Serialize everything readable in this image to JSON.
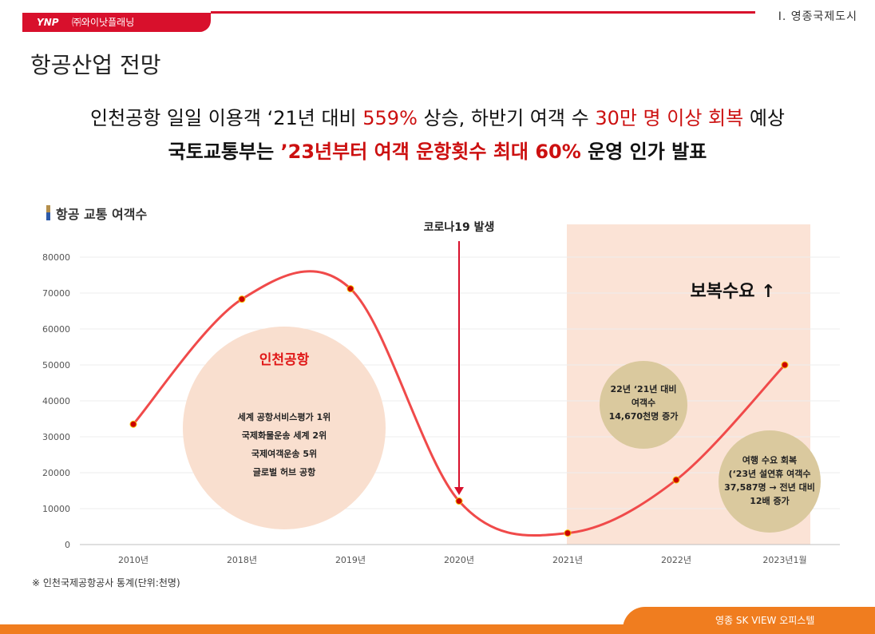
{
  "header": {
    "logo_mark": "YNP",
    "logo_name": "㈜와이낫플래닝",
    "section_label": "Ⅰ. 영종국제도시"
  },
  "page_title": "항공산업 전망",
  "headline_1": {
    "p1": "인천공항 일일 이용객 ‘21년 대비 ",
    "r1": "559%",
    "p2": " 상승, 하반기 여객 수 ",
    "r2": "30만 명 이상 회복",
    "p3": " 예상"
  },
  "headline_2": {
    "p1": "국토교통부는 ",
    "r1": "’23년부터 여객 운항횟수 최대 60%",
    "p2": " 운영 인가 발표"
  },
  "chart_heading": "항공 교통 여객수",
  "colors": {
    "brand_red": "#d8102c",
    "line": "#f04a4a",
    "marker": "#cc0000",
    "highlight_area": "#fbe3d6",
    "bubble_peach": "#f9dfcf",
    "bubble_tan": "#dac99e",
    "footer_orange": "#f07d1f"
  },
  "chart_data": {
    "type": "line",
    "categories": [
      "2010년",
      "2018년",
      "2019년",
      "2020년",
      "2021년",
      "2022년",
      "2023년1월"
    ],
    "values": [
      33500,
      68300,
      71200,
      12100,
      3200,
      18000,
      50000
    ],
    "ylim": [
      0,
      80000
    ],
    "yticks": [
      0,
      10000,
      20000,
      30000,
      40000,
      50000,
      60000,
      70000,
      80000
    ],
    "grid": true,
    "legend": "none",
    "annotations": {
      "covid": "코로나19 발생",
      "recovery": "보복수요 ↑",
      "incheon_title": "인천공항",
      "incheon_lines": [
        "세계 공항서비스평가 1위",
        "국제화물운송 세계 2위",
        "국제여객운송 5위",
        "글로벌 허브 공항"
      ],
      "bubble_2022_lines": [
        "22년 ‘21년 대비",
        "여객수",
        "14,670천명 증가"
      ],
      "bubble_2023_lines": [
        "여행 수요 회복",
        "(‘23년 설연휴 여객수",
        "37,587명 → 전년 대비",
        "12배 증가"
      ]
    }
  },
  "source_note": "※ 인천국제공항공사 통계(단위:천명)",
  "footer_text": "영종 SK VIEW 오피스텔"
}
